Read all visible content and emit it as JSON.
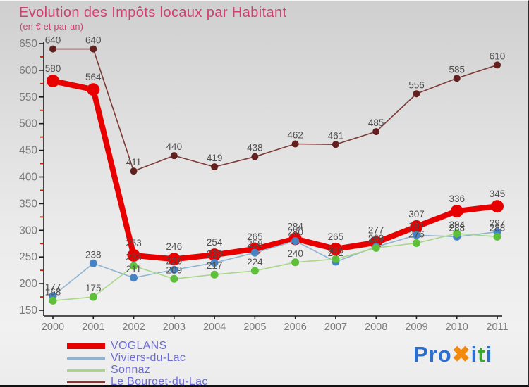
{
  "header": {
    "title": "Evolution des Impôts locaux par Habitant",
    "subtitle": "(en € et par an)"
  },
  "chart_data": {
    "type": "line",
    "title": "Evolution des Impôts locaux par Habitant",
    "subtitle": "(en € et par an)",
    "x": [
      "2000",
      "2001",
      "2002",
      "2003",
      "2004",
      "2005",
      "2006",
      "2007",
      "2008",
      "2009",
      "2010",
      "2011"
    ],
    "ylim": [
      150,
      650
    ],
    "ytick_step": 50,
    "yticks": [
      150,
      200,
      250,
      300,
      350,
      400,
      450,
      500,
      550,
      600,
      650
    ],
    "minor_tick_step": 25,
    "grid": false,
    "legend_position": "bottom-left",
    "value_labels": true,
    "value_label_color": "#4f4f4f",
    "axis_color": "#1a1a1a",
    "axis_label_color": "#7b7b7b",
    "minor_tick_color": "#cc2200",
    "series": [
      {
        "name": "VOGLANS",
        "values": [
          580,
          564,
          253,
          246,
          254,
          265,
          284,
          265,
          277,
          307,
          336,
          345
        ],
        "color": "#e80000",
        "marker_color": "#e80000",
        "line_width": 8,
        "marker_radius": 9,
        "label_offset": 13
      },
      {
        "name": "Viviers-du-Lac",
        "values": [
          177,
          238,
          211,
          226,
          239,
          258,
          280,
          241,
          269,
          291,
          288,
          297
        ],
        "color": "#8fb4d2",
        "marker_color": "#4583c2",
        "line_width": 1.6,
        "marker_radius": 5.5,
        "label_offset": 8
      },
      {
        "name": "Sonnaz",
        "values": [
          168,
          175,
          233,
          209,
          217,
          224,
          240,
          246,
          267,
          276,
          294,
          288
        ],
        "color": "#a9d788",
        "marker_color": "#5dbf3a",
        "line_width": 1.6,
        "marker_radius": 5.5,
        "label_offset": 8
      },
      {
        "name": "Le Bourget-du-Lac",
        "values": [
          640,
          640,
          411,
          440,
          419,
          438,
          462,
          461,
          485,
          556,
          585,
          610
        ],
        "color": "#7d3a3a",
        "marker_color": "#641f1f",
        "line_width": 1.6,
        "marker_radius": 5,
        "label_offset": 8
      }
    ]
  },
  "logo": {
    "name": "Proxiti",
    "parts": [
      {
        "text": "Pro",
        "color": "#2a6ed2"
      },
      {
        "text": "✖",
        "color": "#f28a10"
      },
      {
        "text": "i",
        "color": "#2a6ed2"
      },
      {
        "text": "t",
        "color": "#3ba52f"
      },
      {
        "text": "i",
        "color": "#2a6ed2"
      }
    ]
  }
}
